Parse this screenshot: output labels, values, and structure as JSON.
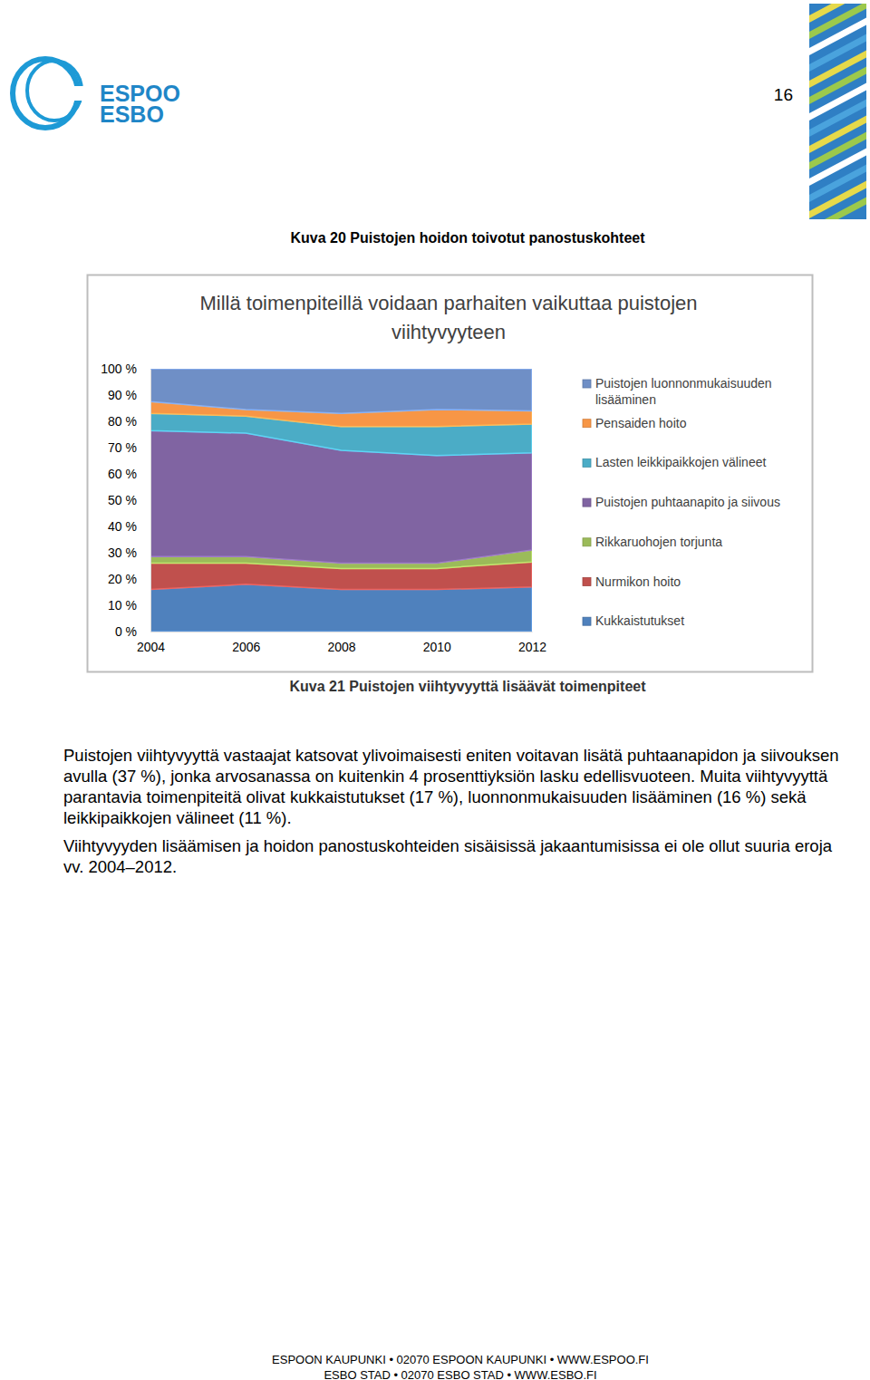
{
  "header": {
    "logo": [
      "ESPOO",
      "ESBO"
    ],
    "page_number": "16"
  },
  "caption_top": "Kuva 20 Puistojen hoidon toivotut panostuskohteet",
  "chart_data": {
    "type": "area",
    "title": "Millä toimenpiteillä voidaan parhaiten vaikuttaa puistojen viihtyvyyteen",
    "stacked": true,
    "grid": false,
    "legend": "right",
    "x": [
      2004,
      2006,
      2008,
      2010,
      2012
    ],
    "xlim": [
      2004,
      2012
    ],
    "xticks": [
      2004,
      2006,
      2008,
      2010,
      2012
    ],
    "ylim": [
      0,
      100
    ],
    "yticks": [
      {
        "value": 0,
        "label": "0 %"
      },
      {
        "value": 10,
        "label": "10 %"
      },
      {
        "value": 20,
        "label": "20 %"
      },
      {
        "value": 30,
        "label": "30 %"
      },
      {
        "value": 40,
        "label": "40 %"
      },
      {
        "value": 50,
        "label": "50 %"
      },
      {
        "value": 60,
        "label": "60 %"
      },
      {
        "value": 70,
        "label": "70 %"
      },
      {
        "value": 80,
        "label": "80 %"
      },
      {
        "value": 90,
        "label": "90 %"
      },
      {
        "value": 100,
        "label": "100 %"
      }
    ],
    "series": [
      {
        "name": "Kukkaistutukset",
        "color": "#4f81bd",
        "values": [
          16,
          18,
          16,
          16,
          17
        ]
      },
      {
        "name": "Nurmikon hoito",
        "color": "#c0504d",
        "values": [
          10,
          8,
          8,
          8,
          9.5
        ]
      },
      {
        "name": "Rikkaruohojen torjunta",
        "color": "#9bbb59",
        "values": [
          2.5,
          2.5,
          2,
          2,
          4.5
        ]
      },
      {
        "name": "Puistojen puhtaanapito ja siivous",
        "color": "#8064a2",
        "values": [
          48,
          47,
          43,
          41,
          37
        ]
      },
      {
        "name": "Lasten leikkipaikkojen välineet",
        "color": "#4bacc6",
        "values": [
          6.5,
          6.5,
          9,
          11,
          11
        ]
      },
      {
        "name": "Pensaiden hoito",
        "color": "#f79646",
        "values": [
          4.5,
          2.5,
          5,
          6.5,
          5
        ]
      },
      {
        "name": "Puistojen luonnonmukaisuuden lisääminen",
        "color": "#6f8fc6",
        "values": [
          12.5,
          15.5,
          17,
          15.5,
          16
        ]
      }
    ]
  },
  "caption_bottom": "Kuva 21 Puistojen viihtyvyyttä lisäävät toimenpiteet",
  "paragraphs": [
    "Puistojen viihtyvyyttä vastaajat katsovat ylivoimaisesti eniten voitavan lisätä puhtaanapidon ja siivouksen avulla (37 %), jonka arvosanassa on kuitenkin 4 prosenttiyksiön lasku edellisvuoteen. Muita viihtyvyyttä parantavia toimenpiteitä olivat kukkaistutukset (17 %), luonnonmukaisuuden lisääminen (16 %) sekä leikkipaikkojen välineet (11 %).",
    "Viihtyvyyden lisäämisen ja hoidon panostuskohteiden sisäisissä jakaantumisissa ei ole ollut suuria eroja vv. 2004–2012."
  ],
  "footer": [
    "ESPOON KAUPUNKI • 02070 ESPOON KAUPUNKI • WWW.ESPOO.FI",
    "ESBO STAD • 02070 ESBO STAD • WWW.ESBO.FI"
  ]
}
